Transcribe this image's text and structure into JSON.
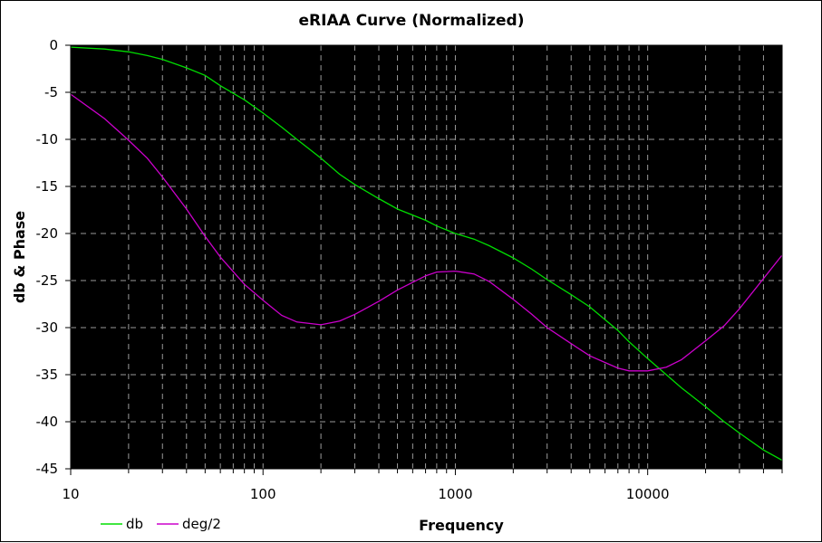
{
  "chart_data": {
    "type": "line",
    "title": "eRIAA Curve (Normalized)",
    "xlabel": "Frequency",
    "ylabel": "db & Phase",
    "x_scale": "log",
    "xlim": [
      10,
      50000
    ],
    "ylim": [
      -45,
      0
    ],
    "x_ticks": [
      10,
      100,
      1000,
      10000
    ],
    "x_tick_labels": [
      "10",
      "100",
      "1000",
      "10000"
    ],
    "y_ticks": [
      0,
      -5,
      -10,
      -15,
      -20,
      -25,
      -30,
      -35,
      -40,
      -45
    ],
    "y_tick_labels": [
      "0",
      "-5",
      "-10",
      "-15",
      "-20",
      "-25",
      "-30",
      "-35",
      "-40",
      "-45"
    ],
    "grid": true,
    "legend_position": "bottom-left",
    "background": "#000000",
    "series": [
      {
        "name": "db",
        "color": "#00dd00",
        "points": [
          [
            10,
            -0.2
          ],
          [
            15,
            -0.4
          ],
          [
            20,
            -0.7
          ],
          [
            25,
            -1.1
          ],
          [
            30,
            -1.5
          ],
          [
            40,
            -2.4
          ],
          [
            50,
            -3.2
          ],
          [
            60,
            -4.3
          ],
          [
            80,
            -5.8
          ],
          [
            100,
            -7.2
          ],
          [
            125,
            -8.7
          ],
          [
            150,
            -10.0
          ],
          [
            200,
            -12.0
          ],
          [
            250,
            -13.7
          ],
          [
            300,
            -14.8
          ],
          [
            400,
            -16.3
          ],
          [
            500,
            -17.4
          ],
          [
            700,
            -18.6
          ],
          [
            800,
            -19.2
          ],
          [
            1000,
            -20.0
          ],
          [
            1250,
            -20.6
          ],
          [
            1500,
            -21.3
          ],
          [
            2000,
            -22.6
          ],
          [
            2500,
            -23.8
          ],
          [
            3000,
            -24.9
          ],
          [
            4000,
            -26.5
          ],
          [
            5000,
            -27.8
          ],
          [
            7000,
            -30.3
          ],
          [
            8000,
            -31.5
          ],
          [
            10000,
            -33.3
          ],
          [
            12500,
            -35.0
          ],
          [
            15000,
            -36.4
          ],
          [
            20000,
            -38.4
          ],
          [
            25000,
            -40.0
          ],
          [
            30000,
            -41.2
          ],
          [
            40000,
            -43.0
          ],
          [
            50000,
            -44.1
          ]
        ]
      },
      {
        "name": "deg/2",
        "color": "#cc00cc",
        "points": [
          [
            10,
            -5.2
          ],
          [
            15,
            -7.8
          ],
          [
            20,
            -10.1
          ],
          [
            25,
            -12.0
          ],
          [
            30,
            -14.0
          ],
          [
            40,
            -17.4
          ],
          [
            50,
            -20.3
          ],
          [
            60,
            -22.5
          ],
          [
            80,
            -25.4
          ],
          [
            100,
            -27.1
          ],
          [
            125,
            -28.7
          ],
          [
            150,
            -29.4
          ],
          [
            200,
            -29.7
          ],
          [
            250,
            -29.3
          ],
          [
            300,
            -28.6
          ],
          [
            400,
            -27.2
          ],
          [
            500,
            -26.0
          ],
          [
            700,
            -24.5
          ],
          [
            800,
            -24.1
          ],
          [
            1000,
            -24.0
          ],
          [
            1250,
            -24.3
          ],
          [
            1500,
            -25.1
          ],
          [
            2000,
            -27.0
          ],
          [
            2500,
            -28.6
          ],
          [
            3000,
            -30.0
          ],
          [
            4000,
            -31.7
          ],
          [
            5000,
            -33.0
          ],
          [
            7000,
            -34.3
          ],
          [
            8000,
            -34.6
          ],
          [
            10000,
            -34.6
          ],
          [
            12500,
            -34.2
          ],
          [
            15000,
            -33.4
          ],
          [
            20000,
            -31.4
          ],
          [
            25000,
            -29.8
          ],
          [
            30000,
            -28.0
          ],
          [
            40000,
            -24.8
          ],
          [
            50000,
            -22.3
          ]
        ]
      }
    ]
  }
}
